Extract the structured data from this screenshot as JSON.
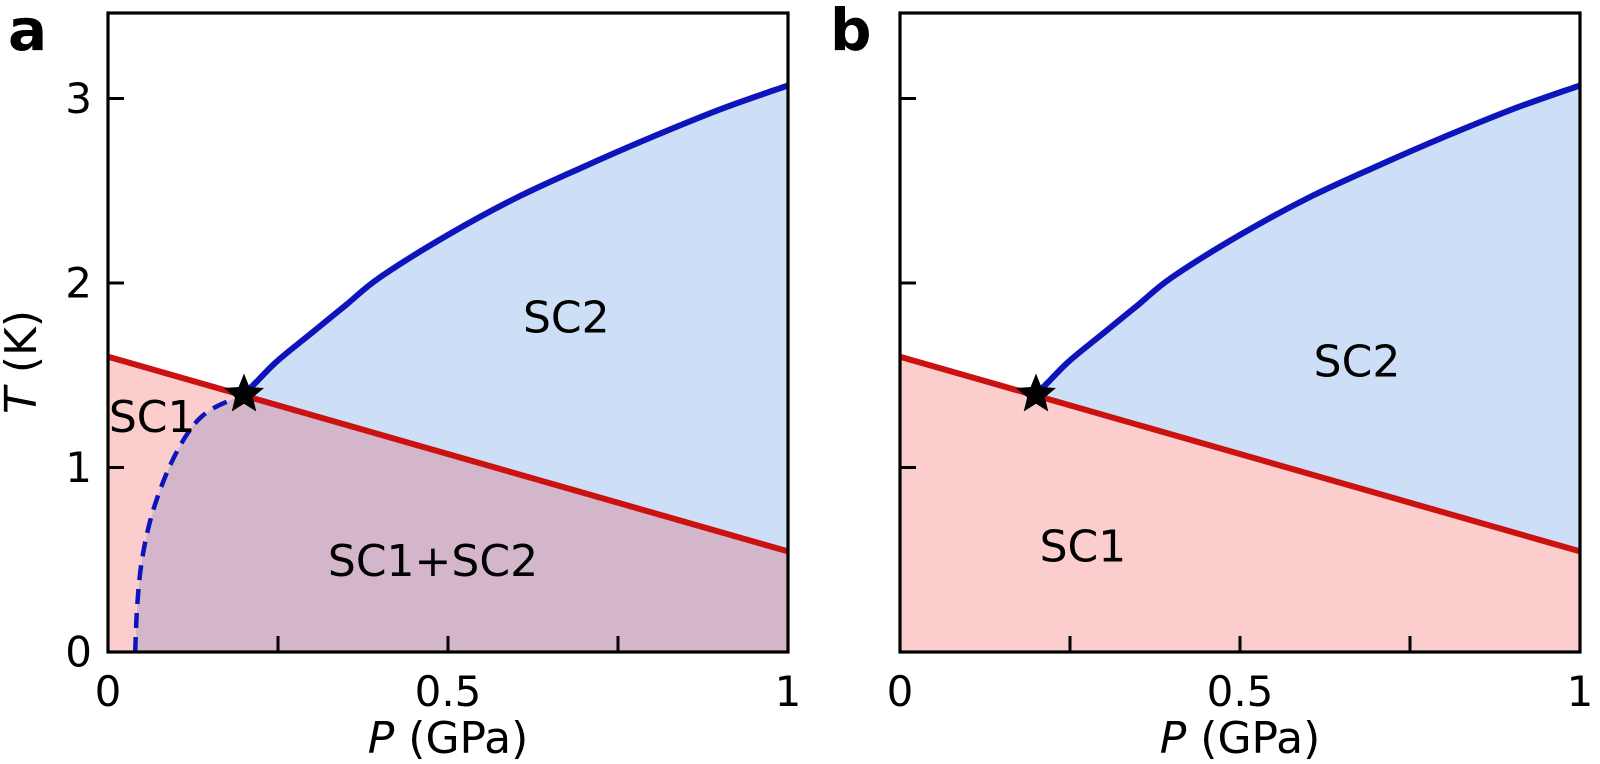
{
  "figure": {
    "background": "#ffffff",
    "panels": [
      {
        "letter": "a",
        "xlabel_var": "P",
        "xlabel_rest": " (GPa)",
        "ylabel_var": "T",
        "ylabel_rest": " (K)"
      },
      {
        "letter": "b",
        "xlabel_var": "P",
        "xlabel_rest": " (GPa)"
      }
    ]
  },
  "chart_data": [
    {
      "type": "line",
      "panel": "a",
      "title": "",
      "xlabel": "P (GPa)",
      "ylabel": "T (K)",
      "xlim": [
        0,
        1
      ],
      "ylim": [
        0,
        3.46
      ],
      "xticks": [
        0,
        0.5,
        1
      ],
      "xtick_labels": [
        "0",
        "0.5",
        "1"
      ],
      "xminorticks": [
        0.25,
        0.75
      ],
      "yticks": [
        0,
        1,
        2,
        3
      ],
      "ytick_labels": [
        "0",
        "1",
        "2",
        "3"
      ],
      "grid": false,
      "legend": "none",
      "colors": {
        "tc1": "#cc1111",
        "tc2": "#0e14bb",
        "sc1_fill": "#fbcdcd",
        "sc2_fill": "#cddff6",
        "sc1sc2_fill": "#d4b6cb",
        "marker": "#000000"
      },
      "series": [
        {
          "role": "tc1",
          "name": "Tc1 transition line",
          "style": "solid",
          "color": "#cc1111",
          "points": [
            [
              0,
              1.6
            ],
            [
              1,
              0.545
            ]
          ]
        },
        {
          "role": "tc2",
          "name": "Tc2 transition line",
          "style": "solid",
          "color": "#0e14bb",
          "points": [
            [
              0.2,
              1.395
            ],
            [
              0.22,
              1.47
            ],
            [
              0.25,
              1.58
            ],
            [
              0.3,
              1.73
            ],
            [
              0.35,
              1.88
            ],
            [
              0.4,
              2.03
            ],
            [
              0.5,
              2.26
            ],
            [
              0.6,
              2.46
            ],
            [
              0.7,
              2.63
            ],
            [
              0.8,
              2.79
            ],
            [
              0.9,
              2.94
            ],
            [
              1,
              3.07
            ]
          ]
        },
        {
          "role": "tc2_dashed",
          "name": "Tc2 continuation (dashed)",
          "style": "dashed",
          "color": "#0e14bb",
          "points": [
            [
              0.04,
              0
            ],
            [
              0.043,
              0.25
            ],
            [
              0.05,
              0.5
            ],
            [
              0.065,
              0.75
            ],
            [
              0.09,
              1.0
            ],
            [
              0.12,
              1.2
            ],
            [
              0.15,
              1.31
            ],
            [
              0.2,
              1.395
            ]
          ]
        }
      ],
      "marker": {
        "type": "star",
        "x": 0.2,
        "y": 1.395,
        "color": "#000000"
      },
      "region_labels": [
        {
          "text": "SC1",
          "x": 0.065,
          "y": 1.27
        },
        {
          "text": "SC2",
          "x": 0.674,
          "y": 1.81
        },
        {
          "text": "SC1+SC2",
          "x": 0.478,
          "y": 0.49
        }
      ]
    },
    {
      "type": "line",
      "panel": "b",
      "title": "",
      "xlabel": "P (GPa)",
      "ylabel": "",
      "xlim": [
        0,
        1
      ],
      "ylim": [
        0,
        3.46
      ],
      "xticks": [
        0,
        0.5,
        1
      ],
      "xtick_labels": [
        "0",
        "0.5",
        "1"
      ],
      "xminorticks": [
        0.25,
        0.75
      ],
      "yticks": [
        0,
        1,
        2,
        3
      ],
      "ytick_labels": [],
      "grid": false,
      "legend": "none",
      "colors": {
        "tc1": "#cc1111",
        "tc2": "#0e14bb",
        "sc1_fill": "#fbcdcd",
        "sc2_fill": "#cddff6",
        "marker": "#000000"
      },
      "series": [
        {
          "role": "tc1",
          "name": "Tc1 transition line",
          "style": "solid",
          "color": "#cc1111",
          "points": [
            [
              0,
              1.6
            ],
            [
              1,
              0.545
            ]
          ]
        },
        {
          "role": "tc2",
          "name": "Tc2 transition line",
          "style": "solid",
          "color": "#0e14bb",
          "points": [
            [
              0.2,
              1.395
            ],
            [
              0.22,
              1.47
            ],
            [
              0.25,
              1.58
            ],
            [
              0.3,
              1.73
            ],
            [
              0.35,
              1.88
            ],
            [
              0.4,
              2.03
            ],
            [
              0.5,
              2.26
            ],
            [
              0.6,
              2.46
            ],
            [
              0.7,
              2.63
            ],
            [
              0.8,
              2.79
            ],
            [
              0.9,
              2.94
            ],
            [
              1,
              3.07
            ]
          ]
        }
      ],
      "marker": {
        "type": "star",
        "x": 0.2,
        "y": 1.395,
        "color": "#000000"
      },
      "region_labels": [
        {
          "text": "SC1",
          "x": 0.269,
          "y": 0.57
        },
        {
          "text": "SC2",
          "x": 0.672,
          "y": 1.57
        }
      ]
    }
  ]
}
